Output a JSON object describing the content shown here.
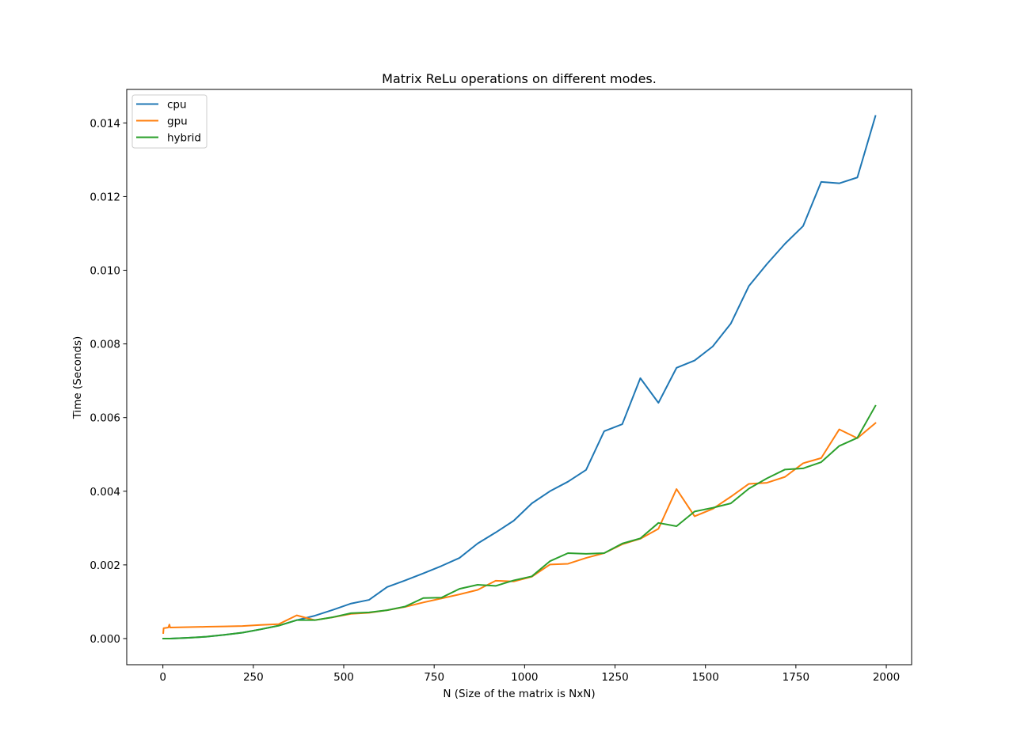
{
  "chart_data": {
    "type": "line",
    "title": "Matrix ReLu operations on different modes.",
    "xlabel": "N (Size of the matrix is NxN)",
    "ylabel": "Time (Seconds)",
    "xlim": [
      -100,
      2070
    ],
    "ylim": [
      -0.00071,
      0.01491
    ],
    "xticks": [
      0,
      250,
      500,
      750,
      1000,
      1250,
      1500,
      1750,
      2000
    ],
    "xtick_labels": [
      "0",
      "250",
      "500",
      "750",
      "1000",
      "1250",
      "1500",
      "1750",
      "2000"
    ],
    "yticks": [
      0.0,
      0.002,
      0.004,
      0.006,
      0.008,
      0.01,
      0.012,
      0.014
    ],
    "ytick_labels": [
      "0.000",
      "0.002",
      "0.004",
      "0.006",
      "0.008",
      "0.010",
      "0.012",
      "0.014"
    ],
    "grid": false,
    "legend_position": "top-left",
    "series": [
      {
        "name": "cpu",
        "color": "#1f77b4",
        "x": [
          1,
          20,
          70,
          120,
          170,
          220,
          270,
          320,
          370,
          420,
          470,
          520,
          570,
          620,
          670,
          720,
          770,
          820,
          870,
          920,
          970,
          1020,
          1070,
          1120,
          1170,
          1220,
          1270,
          1320,
          1370,
          1420,
          1470,
          1520,
          1570,
          1620,
          1670,
          1720,
          1770,
          1820,
          1870,
          1920,
          1970
        ],
        "y": [
          0.0,
          0.0,
          2e-05,
          5e-05,
          0.0001,
          0.00016,
          0.00025,
          0.00035,
          0.0005,
          0.00062,
          0.00078,
          0.00095,
          0.00105,
          0.0014,
          0.00158,
          0.00177,
          0.00197,
          0.00219,
          0.00258,
          0.00288,
          0.0032,
          0.00367,
          0.004,
          0.00426,
          0.00458,
          0.00563,
          0.00582,
          0.00707,
          0.0064,
          0.00735,
          0.00755,
          0.00793,
          0.00855,
          0.00957,
          0.01017,
          0.01072,
          0.0112,
          0.0124,
          0.01236,
          0.01252,
          0.01419
        ]
      },
      {
        "name": "gpu",
        "color": "#ff7f0e",
        "x": [
          1,
          2,
          15,
          18,
          20,
          70,
          120,
          170,
          220,
          270,
          320,
          370,
          420,
          470,
          520,
          570,
          620,
          670,
          720,
          770,
          820,
          870,
          920,
          970,
          1020,
          1070,
          1120,
          1170,
          1220,
          1270,
          1320,
          1370,
          1420,
          1470,
          1520,
          1570,
          1620,
          1670,
          1720,
          1770,
          1820,
          1870,
          1920,
          1970
        ],
        "y": [
          0.00015,
          0.00028,
          0.0003,
          0.00038,
          0.0003,
          0.00031,
          0.00032,
          0.00033,
          0.00034,
          0.00037,
          0.00039,
          0.00063,
          0.0005,
          0.00058,
          0.00067,
          0.0007,
          0.00077,
          0.00086,
          0.00098,
          0.00109,
          0.0012,
          0.00132,
          0.00157,
          0.00155,
          0.00168,
          0.00201,
          0.00203,
          0.00219,
          0.00232,
          0.00256,
          0.00271,
          0.00298,
          0.00406,
          0.00332,
          0.00352,
          0.00385,
          0.0042,
          0.00423,
          0.00439,
          0.00476,
          0.0049,
          0.00568,
          0.00544,
          0.00585
        ]
      },
      {
        "name": "hybrid",
        "color": "#2ca02c",
        "x": [
          1,
          20,
          70,
          120,
          170,
          220,
          270,
          320,
          370,
          420,
          470,
          520,
          570,
          620,
          670,
          720,
          770,
          820,
          870,
          920,
          970,
          1020,
          1070,
          1120,
          1170,
          1220,
          1270,
          1320,
          1370,
          1420,
          1470,
          1520,
          1570,
          1620,
          1670,
          1720,
          1770,
          1820,
          1870,
          1920,
          1970
        ],
        "y": [
          0.0,
          0.0,
          2e-05,
          5e-05,
          0.0001,
          0.00016,
          0.00025,
          0.00035,
          0.0005,
          0.0005,
          0.00058,
          0.00069,
          0.00071,
          0.00077,
          0.00087,
          0.0011,
          0.00111,
          0.00135,
          0.00146,
          0.00143,
          0.00158,
          0.00169,
          0.0021,
          0.00232,
          0.0023,
          0.00232,
          0.00258,
          0.00272,
          0.00314,
          0.00305,
          0.00345,
          0.00355,
          0.00367,
          0.00407,
          0.00435,
          0.00459,
          0.00462,
          0.00479,
          0.00523,
          0.00545,
          0.00632
        ]
      }
    ]
  }
}
